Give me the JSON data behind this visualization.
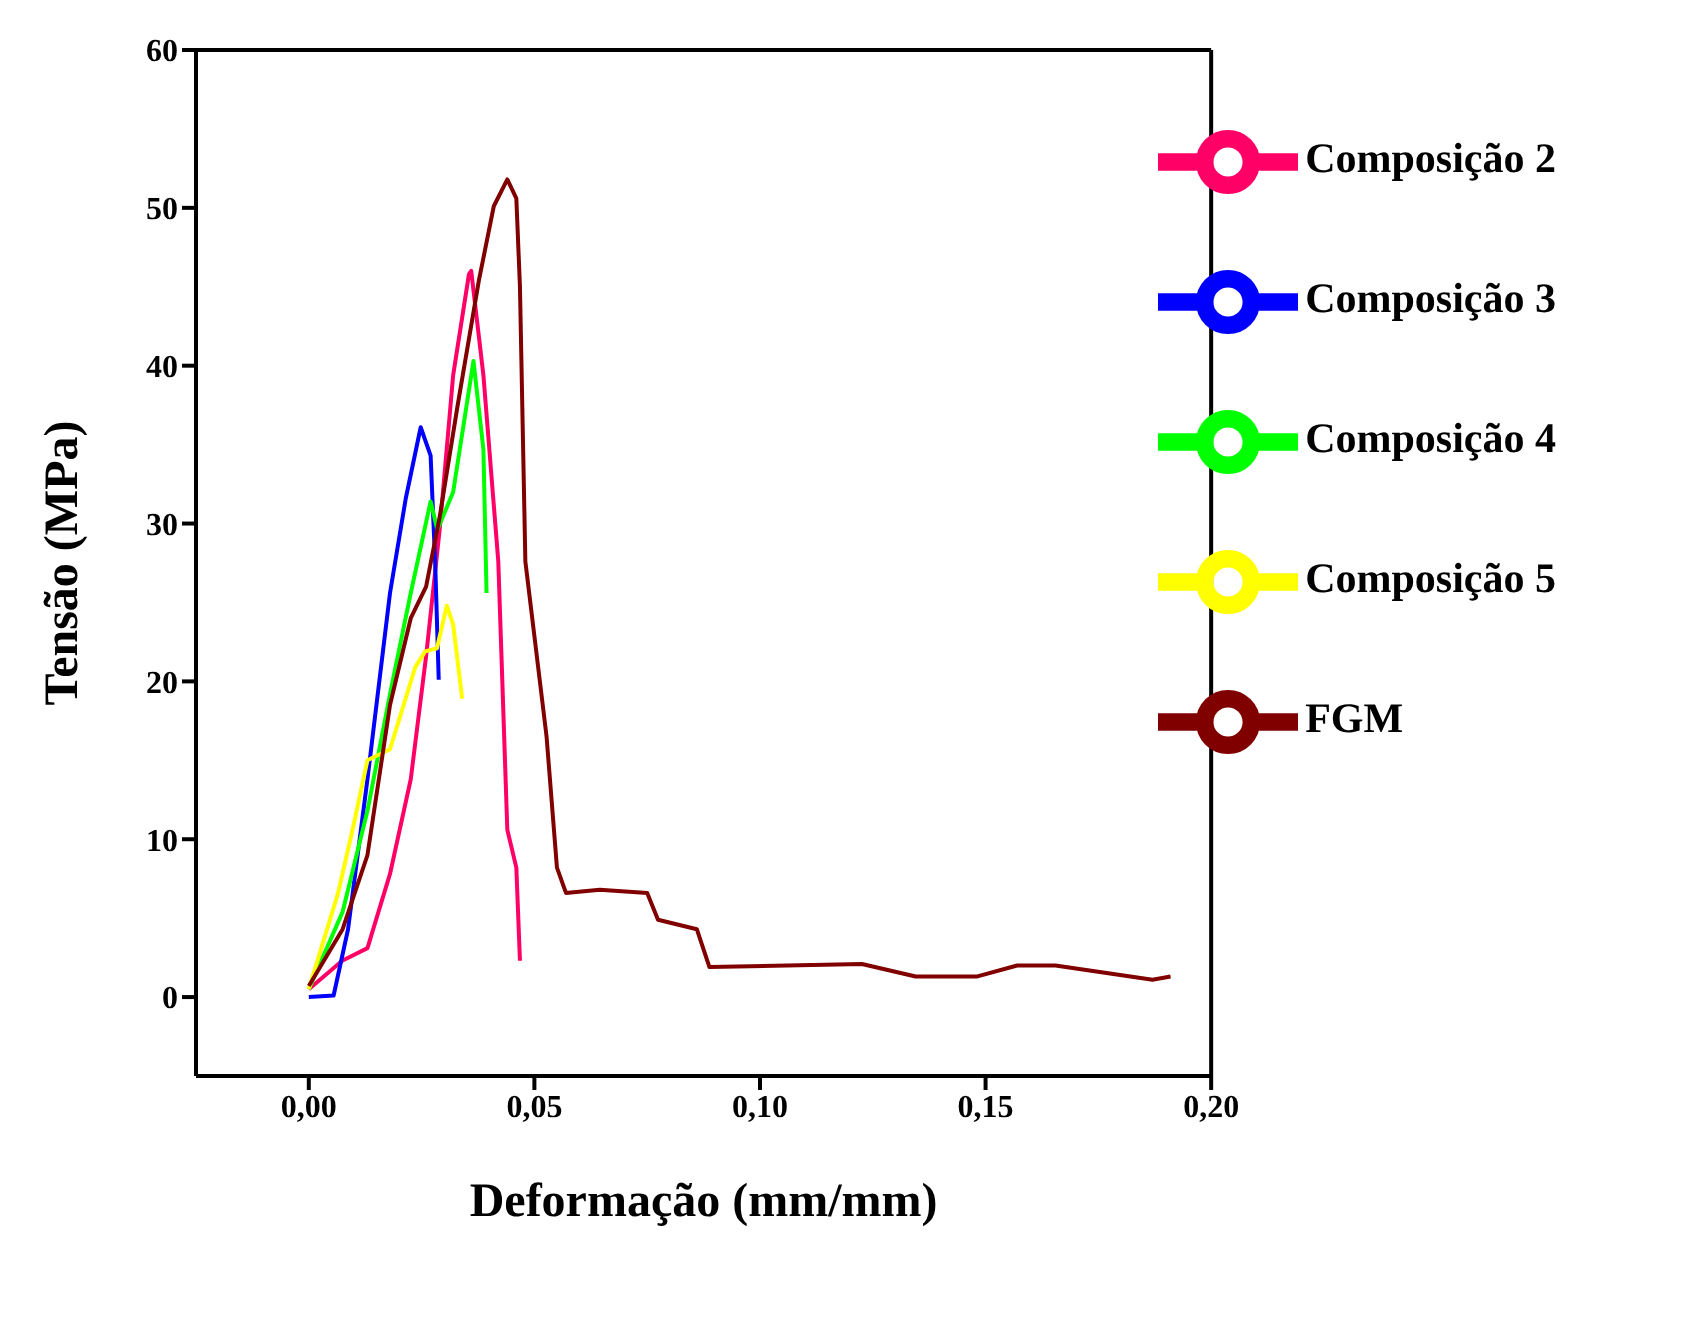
{
  "chart_data": {
    "type": "line",
    "xlabel": "Deformação (mm/mm)",
    "ylabel": "Tensão (MPa)",
    "xlim": [
      -0.025,
      0.2
    ],
    "xticks": [
      {
        "value": 0,
        "label": "0,00"
      },
      {
        "value": 0.05,
        "label": "0,05"
      },
      {
        "value": 0.1,
        "label": "0,10"
      },
      {
        "value": 0.15,
        "label": "0,15"
      },
      {
        "value": 0.2,
        "label": "0,20"
      }
    ],
    "ylim": [
      -5,
      60
    ],
    "yticks": [
      0,
      10,
      20,
      30,
      40,
      50,
      60
    ],
    "grid": false,
    "legend": "top right",
    "marker": "none",
    "line_style": "solid",
    "series": [
      {
        "name": "Composição 2",
        "color": "#ff0066",
        "x": [
          0,
          0.0074,
          0.013,
          0.018,
          0.0226,
          0.026,
          0.029,
          0.032,
          0.0355,
          0.036,
          0.0387,
          0.042,
          0.044,
          0.046,
          0.0468
        ],
        "values": [
          0.5,
          2.3,
          3.1,
          7.8,
          13.8,
          21.6,
          29.6,
          39.4,
          45.8,
          46,
          39.4,
          27.6,
          10.6,
          8.2,
          2.3
        ]
      },
      {
        "name": "Composição 3",
        "color": "#0000ff",
        "x": [
          0,
          0.0055,
          0.0087,
          0.013,
          0.018,
          0.0215,
          0.0248,
          0.027,
          0.028,
          0.0288
        ],
        "values": [
          0,
          0.1,
          4.3,
          13.8,
          25.6,
          31.6,
          36.1,
          34.3,
          27.6,
          20.1
        ]
      },
      {
        "name": "Composição 4",
        "color": "#00ff00",
        "x": [
          0,
          0.0075,
          0.013,
          0.018,
          0.0226,
          0.027,
          0.0285,
          0.032,
          0.0365,
          0.0387,
          0.0394
        ],
        "values": [
          0.5,
          5.4,
          11.8,
          19.2,
          25.6,
          31.4,
          29.6,
          32,
          40.3,
          34.7,
          25.6
        ]
      },
      {
        "name": "Composição 5",
        "color": "#ffff00",
        "x": [
          0,
          0.0065,
          0.0097,
          0.013,
          0.018,
          0.0236,
          0.0258,
          0.0284,
          0.0306,
          0.032,
          0.034
        ],
        "values": [
          0.5,
          6.6,
          10.6,
          15,
          15.7,
          20.9,
          21.9,
          22.1,
          24.8,
          23.6,
          18.9
        ]
      },
      {
        "name": "FGM",
        "color": "#800000",
        "x": [
          0,
          0.0075,
          0.013,
          0.018,
          0.0226,
          0.026,
          0.029,
          0.033,
          0.0377,
          0.041,
          0.044,
          0.046,
          0.0468,
          0.048,
          0.0527,
          0.055,
          0.057,
          0.0645,
          0.075,
          0.0774,
          0.086,
          0.0888,
          0.1226,
          0.1345,
          0.148,
          0.157,
          0.1655,
          0.187,
          0.191
        ],
        "values": [
          0.7,
          4.3,
          9,
          18.5,
          24,
          26,
          30.4,
          37.5,
          45.4,
          50.1,
          51.8,
          50.6,
          45,
          27.6,
          16.5,
          8.2,
          6.6,
          6.8,
          6.6,
          4.9,
          4.3,
          1.9,
          2.1,
          1.3,
          1.3,
          2,
          2,
          1.1,
          1.3
        ]
      }
    ]
  }
}
